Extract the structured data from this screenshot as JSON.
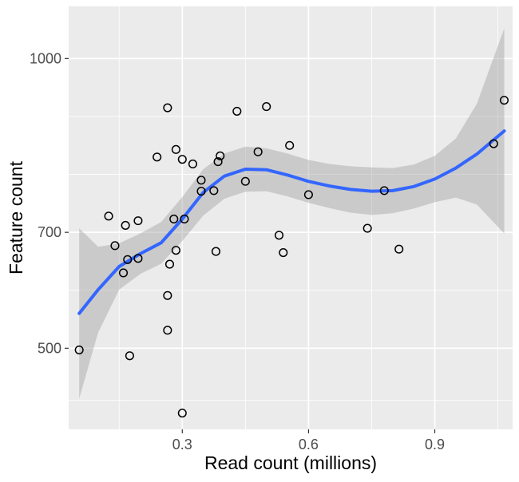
{
  "chart_data": {
    "type": "scatter",
    "title": "",
    "xlabel": "Read count (millions)",
    "ylabel": "Feature count",
    "xlim": [
      0.03,
      1.085
    ],
    "ylim": [
      360,
      1090
    ],
    "x_ticks": [
      0.3,
      0.6,
      0.9
    ],
    "x_tick_labels": [
      "0.3",
      "0.6",
      "0.9"
    ],
    "y_ticks": [
      500,
      700,
      1000
    ],
    "y_tick_labels": [
      "500",
      "700",
      "1000"
    ],
    "x_gridlines_major": [
      0.3,
      0.6,
      0.9
    ],
    "x_gridlines_minor": [
      0.15,
      0.45,
      0.75,
      1.05
    ],
    "y_gridlines_major": [
      500,
      700,
      1000
    ],
    "y_gridlines_minor": [
      410,
      600,
      800,
      900
    ],
    "grid": true,
    "legend": "none",
    "colors": {
      "panel": "#ebebeb",
      "gridline": "#ffffff",
      "smooth_line": "#3366ff",
      "confidence_band": "#999999",
      "points": "#000000"
    },
    "points": [
      {
        "x": 0.055,
        "y": 497
      },
      {
        "x": 0.125,
        "y": 728
      },
      {
        "x": 0.14,
        "y": 677
      },
      {
        "x": 0.16,
        "y": 630
      },
      {
        "x": 0.165,
        "y": 712
      },
      {
        "x": 0.17,
        "y": 653
      },
      {
        "x": 0.175,
        "y": 487
      },
      {
        "x": 0.195,
        "y": 720
      },
      {
        "x": 0.195,
        "y": 655
      },
      {
        "x": 0.24,
        "y": 830
      },
      {
        "x": 0.265,
        "y": 915
      },
      {
        "x": 0.265,
        "y": 591
      },
      {
        "x": 0.265,
        "y": 531
      },
      {
        "x": 0.27,
        "y": 645
      },
      {
        "x": 0.28,
        "y": 723
      },
      {
        "x": 0.285,
        "y": 669
      },
      {
        "x": 0.285,
        "y": 843
      },
      {
        "x": 0.3,
        "y": 388
      },
      {
        "x": 0.3,
        "y": 826
      },
      {
        "x": 0.305,
        "y": 723
      },
      {
        "x": 0.325,
        "y": 818
      },
      {
        "x": 0.345,
        "y": 790
      },
      {
        "x": 0.345,
        "y": 771
      },
      {
        "x": 0.375,
        "y": 772
      },
      {
        "x": 0.38,
        "y": 667
      },
      {
        "x": 0.385,
        "y": 822
      },
      {
        "x": 0.39,
        "y": 832
      },
      {
        "x": 0.43,
        "y": 909
      },
      {
        "x": 0.45,
        "y": 788
      },
      {
        "x": 0.48,
        "y": 839
      },
      {
        "x": 0.5,
        "y": 917
      },
      {
        "x": 0.53,
        "y": 695
      },
      {
        "x": 0.54,
        "y": 665
      },
      {
        "x": 0.555,
        "y": 850
      },
      {
        "x": 0.6,
        "y": 765
      },
      {
        "x": 0.74,
        "y": 707
      },
      {
        "x": 0.78,
        "y": 772
      },
      {
        "x": 0.815,
        "y": 671
      },
      {
        "x": 1.04,
        "y": 853
      },
      {
        "x": 1.065,
        "y": 928
      }
    ],
    "smooth": [
      {
        "x": 0.055,
        "y": 560,
        "ymin": 413,
        "ymax": 707
      },
      {
        "x": 0.1,
        "y": 601,
        "ymin": 527,
        "ymax": 675
      },
      {
        "x": 0.15,
        "y": 641,
        "ymin": 601,
        "ymax": 681
      },
      {
        "x": 0.2,
        "y": 663,
        "ymin": 628,
        "ymax": 698
      },
      {
        "x": 0.25,
        "y": 682,
        "ymin": 646,
        "ymax": 718
      },
      {
        "x": 0.3,
        "y": 723,
        "ymin": 685,
        "ymax": 761
      },
      {
        "x": 0.35,
        "y": 769,
        "ymin": 729,
        "ymax": 809
      },
      {
        "x": 0.4,
        "y": 797,
        "ymin": 758,
        "ymax": 836
      },
      {
        "x": 0.45,
        "y": 809,
        "ymin": 770,
        "ymax": 848
      },
      {
        "x": 0.5,
        "y": 808,
        "ymin": 771,
        "ymax": 845
      },
      {
        "x": 0.55,
        "y": 799,
        "ymin": 762,
        "ymax": 836
      },
      {
        "x": 0.6,
        "y": 788,
        "ymin": 751,
        "ymax": 825
      },
      {
        "x": 0.65,
        "y": 780,
        "ymin": 742,
        "ymax": 818
      },
      {
        "x": 0.7,
        "y": 774,
        "ymin": 734,
        "ymax": 814
      },
      {
        "x": 0.75,
        "y": 771,
        "ymin": 730,
        "ymax": 812
      },
      {
        "x": 0.8,
        "y": 772,
        "ymin": 733,
        "ymax": 811
      },
      {
        "x": 0.85,
        "y": 779,
        "ymin": 741,
        "ymax": 817
      },
      {
        "x": 0.9,
        "y": 792,
        "ymin": 752,
        "ymax": 832
      },
      {
        "x": 0.95,
        "y": 811,
        "ymin": 760,
        "ymax": 862
      },
      {
        "x": 1.0,
        "y": 835,
        "ymin": 748,
        "ymax": 922
      },
      {
        "x": 1.065,
        "y": 875,
        "ymin": 698,
        "ymax": 1052
      }
    ]
  }
}
